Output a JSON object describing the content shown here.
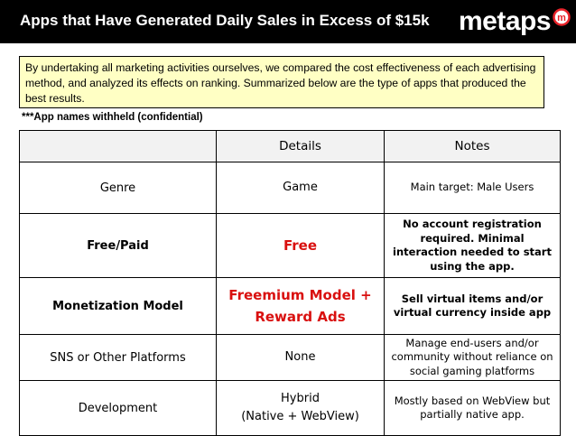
{
  "header": {
    "title": "Apps that Have Generated Daily Sales in Excess of $15k",
    "logo_text": "metaps",
    "background_color": "#000000",
    "logo_icon": "metaps-m-circle-icon",
    "logo_accent_color": "#e8232a"
  },
  "intro": {
    "text": "By undertaking all marketing activities ourselves, we compared the cost effectiveness of each advertising method, and analyzed its effects on ranking.  Summarized below are the type of apps that produced the best results.",
    "background_color": "#ffffc4"
  },
  "confidential_note": "***App names withheld (confidential)",
  "table": {
    "headers": [
      "",
      "Details",
      "Notes"
    ],
    "rows": [
      {
        "label": "Genre",
        "details": "Game",
        "notes": "Main target: Male Users"
      },
      {
        "label": "Free/Paid",
        "details": "Free",
        "notes": "No account registration required. Minimal interaction needed to start using the app."
      },
      {
        "label": "Monetization Model",
        "details": "Freemium Model + Reward Ads",
        "notes": "Sell virtual items and/or virtual currency inside app"
      },
      {
        "label": "SNS or Other Platforms",
        "details": "None",
        "notes": "Manage end-users and/or community without reliance on social gaming platforms"
      },
      {
        "label": "Development",
        "details_line1": "Hybrid",
        "details_line2": "(Native + WebView)",
        "notes": "Mostly based on WebView but partially native app."
      }
    ],
    "highlight_color": "#d9100f",
    "header_background": "#f2f2f2"
  }
}
